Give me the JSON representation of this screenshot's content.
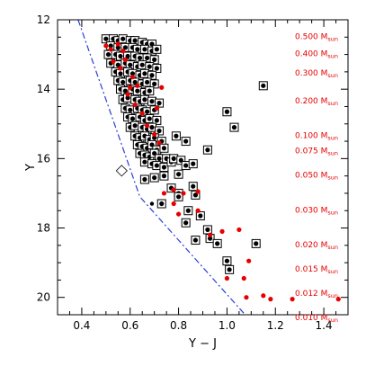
{
  "chart_data": {
    "type": "scatter",
    "title": "",
    "xlabel": "Y − J",
    "ylabel": "Y",
    "xlim": [
      0.3,
      1.5
    ],
    "ylim": [
      20.5,
      12.0
    ],
    "y_inverted": true,
    "x_ticks": [
      0.4,
      0.6,
      0.8,
      1.0,
      1.2,
      1.4
    ],
    "x_tick_labels": [
      "0.4",
      "0.6",
      "0.8",
      "1.0",
      "1.2",
      "1.4"
    ],
    "y_ticks": [
      12,
      14,
      16,
      18,
      20
    ],
    "y_tick_labels": [
      "12",
      "14",
      "16",
      "18",
      "20"
    ],
    "grid": false,
    "mass_labels": [
      {
        "y": 12.45,
        "value": "0.500",
        "unit_main": "M",
        "unit_sub": "sun"
      },
      {
        "y": 12.95,
        "value": "0.400",
        "unit_main": "M",
        "unit_sub": "sun"
      },
      {
        "y": 13.5,
        "value": "0.300",
        "unit_main": "M",
        "unit_sub": "sun"
      },
      {
        "y": 14.3,
        "value": "0.200",
        "unit_main": "M",
        "unit_sub": "sun"
      },
      {
        "y": 15.3,
        "value": "0.100",
        "unit_main": "M",
        "unit_sub": "sun"
      },
      {
        "y": 15.75,
        "value": "0.075",
        "unit_main": "M",
        "unit_sub": "sun"
      },
      {
        "y": 16.45,
        "value": "0.050",
        "unit_main": "M",
        "unit_sub": "sun"
      },
      {
        "y": 17.45,
        "value": "0.030",
        "unit_main": "M",
        "unit_sub": "sun"
      },
      {
        "y": 18.45,
        "value": "0.020",
        "unit_main": "M",
        "unit_sub": "sun"
      },
      {
        "y": 19.15,
        "value": "0.015",
        "unit_main": "M",
        "unit_sub": "sun"
      },
      {
        "y": 19.85,
        "value": "0.012",
        "unit_main": "M",
        "unit_sub": "sun"
      },
      {
        "y": 20.55,
        "value": "0.010",
        "unit_main": "M",
        "unit_sub": "sun"
      }
    ],
    "colors": {
      "candidate": "#000000",
      "model": "#e60000",
      "cut_line": "#2a3fd6",
      "label": "#e60000"
    },
    "cut_line": [
      [
        0.385,
        12.0
      ],
      [
        0.64,
        17.1
      ],
      [
        1.075,
        20.5
      ]
    ],
    "open_diamond": [
      0.565,
      16.35
    ],
    "series": [
      {
        "marker": "boxed-dot",
        "points": [
          [
            0.5,
            12.55
          ],
          [
            0.53,
            12.55
          ],
          [
            0.55,
            12.6
          ],
          [
            0.57,
            12.55
          ],
          [
            0.6,
            12.6
          ],
          [
            0.62,
            12.6
          ],
          [
            0.65,
            12.65
          ],
          [
            0.67,
            12.7
          ],
          [
            0.69,
            12.7
          ],
          [
            0.52,
            12.75
          ],
          [
            0.55,
            12.8
          ],
          [
            0.58,
            12.8
          ],
          [
            0.61,
            12.8
          ],
          [
            0.63,
            12.85
          ],
          [
            0.66,
            12.85
          ],
          [
            0.69,
            12.9
          ],
          [
            0.71,
            12.85
          ],
          [
            0.51,
            13.0
          ],
          [
            0.54,
            13.0
          ],
          [
            0.56,
            13.05
          ],
          [
            0.59,
            13.05
          ],
          [
            0.62,
            13.05
          ],
          [
            0.64,
            13.1
          ],
          [
            0.67,
            13.1
          ],
          [
            0.7,
            13.15
          ],
          [
            0.52,
            13.25
          ],
          [
            0.55,
            13.3
          ],
          [
            0.58,
            13.25
          ],
          [
            0.6,
            13.3
          ],
          [
            0.63,
            13.35
          ],
          [
            0.65,
            13.3
          ],
          [
            0.68,
            13.35
          ],
          [
            0.71,
            13.4
          ],
          [
            0.54,
            13.5
          ],
          [
            0.56,
            13.55
          ],
          [
            0.59,
            13.5
          ],
          [
            0.61,
            13.55
          ],
          [
            0.64,
            13.6
          ],
          [
            0.66,
            13.55
          ],
          [
            0.69,
            13.6
          ],
          [
            0.55,
            13.75
          ],
          [
            0.57,
            13.8
          ],
          [
            0.6,
            13.75
          ],
          [
            0.62,
            13.8
          ],
          [
            0.65,
            13.85
          ],
          [
            0.67,
            13.8
          ],
          [
            0.7,
            13.85
          ],
          [
            0.56,
            14.0
          ],
          [
            0.58,
            14.05
          ],
          [
            0.61,
            14.0
          ],
          [
            0.63,
            14.05
          ],
          [
            0.66,
            14.1
          ],
          [
            0.68,
            14.05
          ],
          [
            0.57,
            14.3
          ],
          [
            0.59,
            14.25
          ],
          [
            0.62,
            14.3
          ],
          [
            0.64,
            14.35
          ],
          [
            0.66,
            14.3
          ],
          [
            0.69,
            14.35
          ],
          [
            0.72,
            14.4
          ],
          [
            0.58,
            14.55
          ],
          [
            0.6,
            14.6
          ],
          [
            0.63,
            14.55
          ],
          [
            0.65,
            14.6
          ],
          [
            0.67,
            14.65
          ],
          [
            0.7,
            14.6
          ],
          [
            0.59,
            14.8
          ],
          [
            0.61,
            14.85
          ],
          [
            0.64,
            14.8
          ],
          [
            0.66,
            14.9
          ],
          [
            0.68,
            14.85
          ],
          [
            0.71,
            14.9
          ],
          [
            0.6,
            15.1
          ],
          [
            0.62,
            15.05
          ],
          [
            0.65,
            15.1
          ],
          [
            0.67,
            15.15
          ],
          [
            0.69,
            15.1
          ],
          [
            0.72,
            15.2
          ],
          [
            0.62,
            15.35
          ],
          [
            0.64,
            15.4
          ],
          [
            0.66,
            15.35
          ],
          [
            0.68,
            15.45
          ],
          [
            0.7,
            15.4
          ],
          [
            0.73,
            15.5
          ],
          [
            0.63,
            15.6
          ],
          [
            0.65,
            15.65
          ],
          [
            0.67,
            15.7
          ],
          [
            0.69,
            15.6
          ],
          [
            0.71,
            15.75
          ],
          [
            0.74,
            15.7
          ],
          [
            0.64,
            15.85
          ],
          [
            0.66,
            15.9
          ],
          [
            0.68,
            15.95
          ],
          [
            0.7,
            15.85
          ],
          [
            0.72,
            16.0
          ],
          [
            0.75,
            16.0
          ],
          [
            0.66,
            16.1
          ],
          [
            0.69,
            16.15
          ],
          [
            0.71,
            16.2
          ],
          [
            0.74,
            16.25
          ],
          [
            0.77,
            16.1
          ],
          [
            0.78,
            16.0
          ],
          [
            0.81,
            16.05
          ],
          [
            0.83,
            16.2
          ],
          [
            0.86,
            16.15
          ],
          [
            0.8,
            16.45
          ],
          [
            0.79,
            15.35
          ],
          [
            0.83,
            15.5
          ],
          [
            0.92,
            15.75
          ],
          [
            1.0,
            14.65
          ],
          [
            1.03,
            15.1
          ],
          [
            1.15,
            13.9
          ],
          [
            0.66,
            16.6
          ],
          [
            0.7,
            16.55
          ],
          [
            0.74,
            16.5
          ],
          [
            0.77,
            16.85
          ],
          [
            0.8,
            17.0
          ],
          [
            0.86,
            16.8
          ],
          [
            0.73,
            17.3
          ],
          [
            0.8,
            17.1
          ],
          [
            0.87,
            17.05
          ],
          [
            0.84,
            17.5
          ],
          [
            0.83,
            17.85
          ],
          [
            0.89,
            17.65
          ],
          [
            0.87,
            18.35
          ],
          [
            0.92,
            18.05
          ],
          [
            0.93,
            18.3
          ],
          [
            0.96,
            18.45
          ],
          [
            1.0,
            18.95
          ],
          [
            1.01,
            19.2
          ],
          [
            1.12,
            18.45
          ]
        ]
      },
      {
        "marker": "filled-dot",
        "points": [
          [
            0.5,
            12.75
          ],
          [
            0.52,
            12.85
          ],
          [
            0.55,
            12.7
          ],
          [
            0.57,
            12.9
          ],
          [
            0.53,
            13.2
          ],
          [
            0.56,
            13.4
          ],
          [
            0.58,
            13.15
          ],
          [
            0.61,
            13.65
          ],
          [
            0.63,
            13.9
          ],
          [
            0.59,
            14.15
          ],
          [
            0.62,
            14.45
          ],
          [
            0.6,
            13.95
          ],
          [
            0.65,
            14.7
          ],
          [
            0.67,
            15.05
          ],
          [
            0.7,
            15.3
          ],
          [
            0.72,
            15.55
          ],
          [
            0.73,
            13.95
          ],
          [
            0.71,
            14.55
          ],
          [
            0.74,
            17.0
          ],
          [
            0.78,
            16.9
          ],
          [
            0.82,
            17.0
          ],
          [
            0.88,
            16.95
          ],
          [
            0.78,
            17.3
          ],
          [
            0.8,
            17.6
          ],
          [
            0.88,
            17.5
          ],
          [
            0.93,
            18.2
          ],
          [
            0.98,
            18.1
          ],
          [
            1.0,
            19.45
          ],
          [
            1.05,
            18.05
          ],
          [
            1.07,
            19.45
          ],
          [
            1.09,
            18.95
          ],
          [
            1.08,
            20.0
          ],
          [
            1.15,
            19.95
          ],
          [
            1.18,
            20.05
          ],
          [
            1.27,
            20.05
          ],
          [
            1.46,
            20.05
          ]
        ]
      },
      {
        "marker": "small-black-dot",
        "points": [
          [
            0.69,
            17.3
          ]
        ]
      }
    ]
  }
}
